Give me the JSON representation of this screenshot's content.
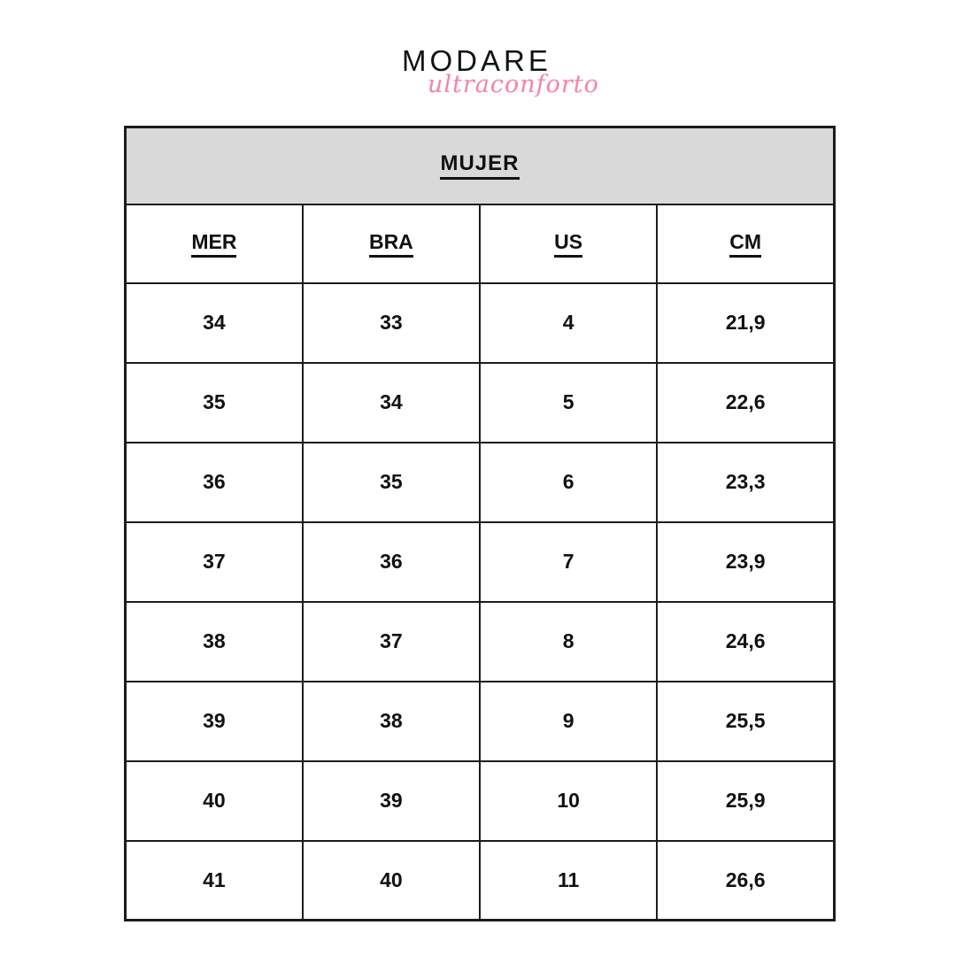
{
  "brand": {
    "wordmark": "MODARE",
    "tagline": "ultraconforto"
  },
  "colors": {
    "tagline_pink": "#f582ac",
    "header_bg": "#d9d9d9",
    "border": "#1c1c1c",
    "text": "#111111",
    "background": "#ffffff"
  },
  "size_chart": {
    "title": "MUJER",
    "columns": [
      "MER",
      "BRA",
      "US",
      "CM"
    ],
    "rows": [
      [
        "34",
        "33",
        "4",
        "21,9"
      ],
      [
        "35",
        "34",
        "5",
        "22,6"
      ],
      [
        "36",
        "35",
        "6",
        "23,3"
      ],
      [
        "37",
        "36",
        "7",
        "23,9"
      ],
      [
        "38",
        "37",
        "8",
        "24,6"
      ],
      [
        "39",
        "38",
        "9",
        "25,5"
      ],
      [
        "40",
        "39",
        "10",
        "25,9"
      ],
      [
        "41",
        "40",
        "11",
        "26,6"
      ]
    ]
  }
}
